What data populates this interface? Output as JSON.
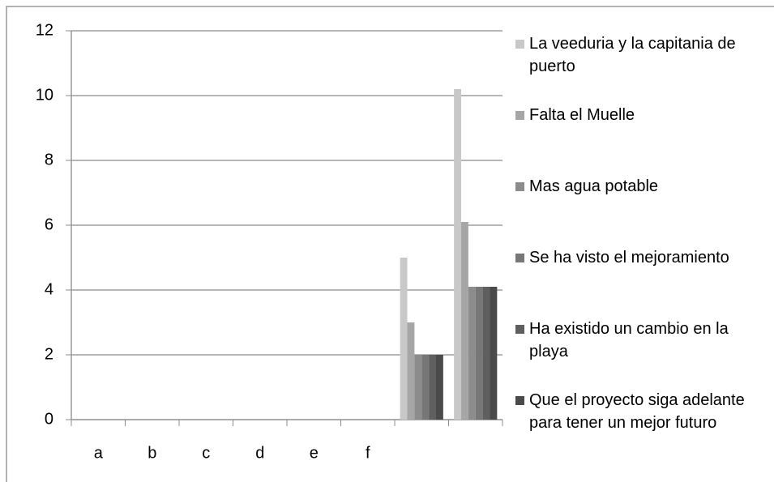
{
  "chart_data": {
    "type": "bar",
    "categories": [
      "a",
      "b",
      "c",
      "d",
      "e",
      "f",
      null,
      null
    ],
    "series": [
      {
        "name": "La veeduria y la capitania de puerto",
        "color": "#c8c8c8",
        "values": [
          0,
          0,
          0,
          0,
          0,
          0,
          5,
          10.2
        ]
      },
      {
        "name": "Falta el Muelle",
        "color": "#a6a6a6",
        "values": [
          0,
          0,
          0,
          0,
          0,
          0,
          3,
          6.1
        ]
      },
      {
        "name": "Mas agua potable",
        "color": "#8c8c8c",
        "values": [
          0,
          0,
          0,
          0,
          0,
          0,
          2,
          4.1
        ]
      },
      {
        "name": "Se ha visto el mejoramiento",
        "color": "#777777",
        "values": [
          0,
          0,
          0,
          0,
          0,
          0,
          2,
          4.1
        ]
      },
      {
        "name": "Ha existido un cambio en la playa",
        "color": "#5f5f5f",
        "values": [
          0,
          0,
          0,
          0,
          0,
          0,
          2,
          4.1
        ]
      },
      {
        "name": "Que el proyecto siga adelante para tener un mejor futuro",
        "color": "#4a4a4a",
        "values": [
          0,
          0,
          0,
          0,
          0,
          0,
          2,
          4.1
        ]
      }
    ],
    "ylim": [
      0,
      12
    ],
    "yticks": [
      0,
      2,
      4,
      6,
      8,
      10,
      12
    ],
    "grid": true,
    "legend": "right"
  }
}
